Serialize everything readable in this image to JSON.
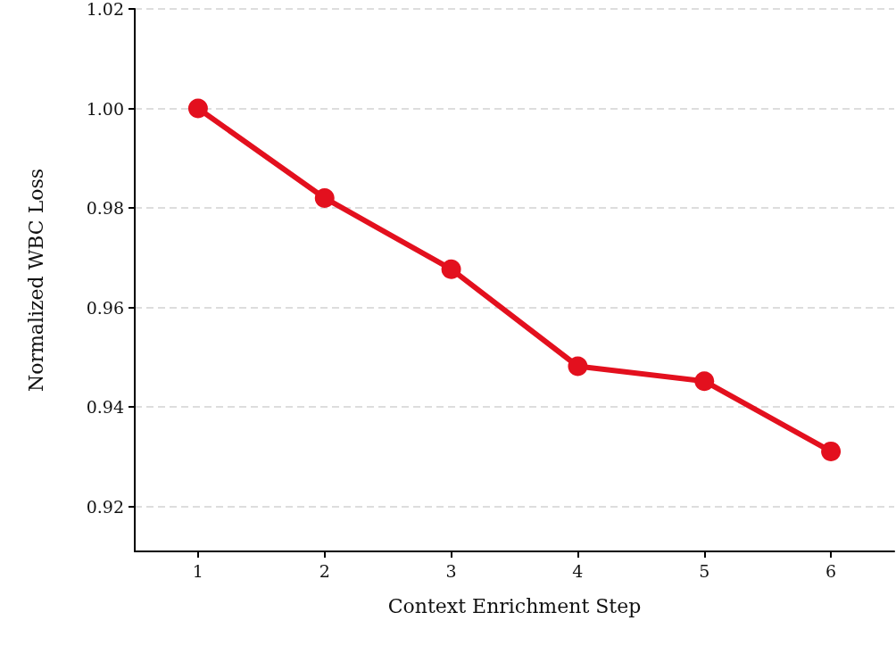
{
  "chart_data": {
    "type": "line",
    "xlabel": "Context Enrichment Step",
    "ylabel": "Normalized WBC Loss",
    "x": [
      1,
      2,
      3,
      4,
      5,
      6
    ],
    "series": [
      {
        "color": "#e3101e",
        "values": [
          1.0,
          0.982,
          0.9677,
          0.9482,
          0.9452,
          0.9311
        ]
      }
    ],
    "xlim": [
      0.5,
      6.5
    ],
    "xticks": [
      1,
      2,
      3,
      4,
      5,
      6
    ],
    "ylim": [
      0.911,
      1.02
    ],
    "yticks": [
      {
        "value": 0.92,
        "label": "0.92"
      },
      {
        "value": 0.94,
        "label": "0.94"
      },
      {
        "value": 0.96,
        "label": "0.96"
      },
      {
        "value": 0.98,
        "label": "0.98"
      },
      {
        "value": 1.0,
        "label": "1.00"
      },
      {
        "value": 1.02,
        "label": "1.02"
      }
    ],
    "grid": "y",
    "marker": "circle",
    "line_style": "solid"
  }
}
